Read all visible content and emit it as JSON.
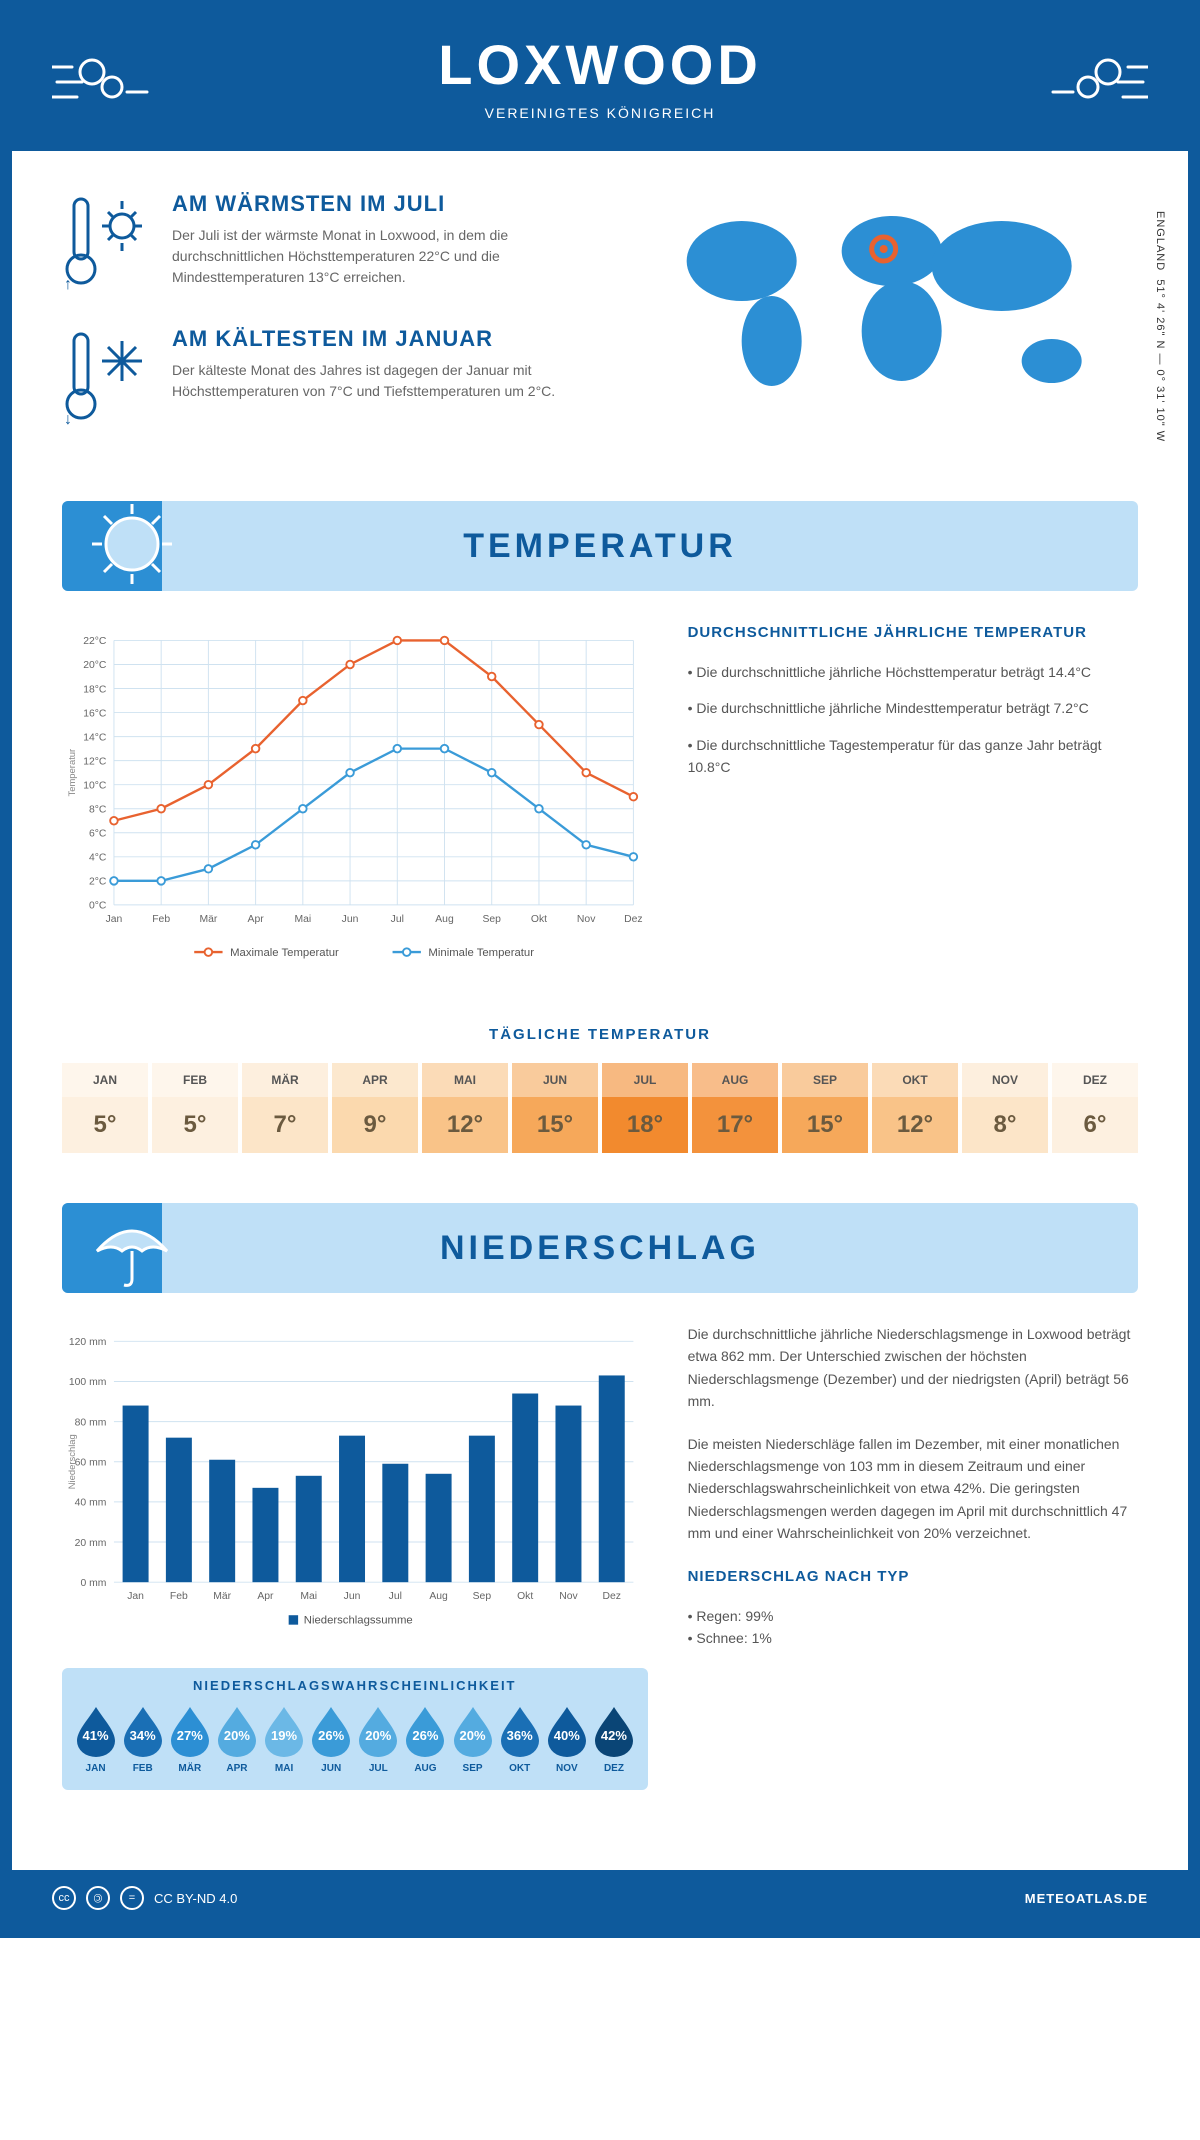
{
  "header": {
    "title": "LOXWOOD",
    "subtitle": "VEREINIGTES KÖNIGREICH"
  },
  "coords": {
    "lat": "51° 4' 26\" N — 0° 31' 10\" W",
    "region": "ENGLAND"
  },
  "facts": {
    "warm": {
      "title": "AM WÄRMSTEN IM JULI",
      "text": "Der Juli ist der wärmste Monat in Loxwood, in dem die durchschnittlichen Höchsttemperaturen 22°C und die Mindesttemperaturen 13°C erreichen."
    },
    "cold": {
      "title": "AM KÄLTESTEN IM JANUAR",
      "text": "Der kälteste Monat des Jahres ist dagegen der Januar mit Höchsttemperaturen von 7°C und Tiefsttemperaturen um 2°C."
    }
  },
  "sections": {
    "temp": "TEMPERATUR",
    "precip": "NIEDERSCHLAG",
    "daily": "TÄGLICHE TEMPERATUR",
    "prob": "NIEDERSCHLAGSWAHRSCHEINLICHKEIT"
  },
  "months": [
    "Jan",
    "Feb",
    "Mär",
    "Apr",
    "Mai",
    "Jun",
    "Jul",
    "Aug",
    "Sep",
    "Okt",
    "Nov",
    "Dez"
  ],
  "months_uc": [
    "JAN",
    "FEB",
    "MÄR",
    "APR",
    "MAI",
    "JUN",
    "JUL",
    "AUG",
    "SEP",
    "OKT",
    "NOV",
    "DEZ"
  ],
  "temp_chart": {
    "type": "line",
    "ylabel": "Temperatur",
    "ylim": [
      0,
      22
    ],
    "ytick_step": 2,
    "max_series": {
      "label": "Maximale Temperatur",
      "color": "#e8622f",
      "values": [
        7,
        8,
        10,
        13,
        17,
        20,
        22,
        22,
        19,
        15,
        11,
        9
      ]
    },
    "min_series": {
      "label": "Minimale Temperatur",
      "color": "#3a9bd8",
      "values": [
        2,
        2,
        3,
        5,
        8,
        11,
        13,
        13,
        11,
        8,
        5,
        4
      ]
    },
    "grid_color": "#cfe2f0",
    "bg": "#ffffff"
  },
  "temp_side": {
    "heading": "DURCHSCHNITTLICHE JÄHRLICHE TEMPERATUR",
    "b1": "• Die durchschnittliche jährliche Höchsttemperatur beträgt 14.4°C",
    "b2": "• Die durchschnittliche jährliche Mindesttemperatur beträgt 7.2°C",
    "b3": "• Die durchschnittliche Tagestemperatur für das ganze Jahr beträgt 10.8°C"
  },
  "daily_temp": {
    "values": [
      5,
      5,
      7,
      9,
      12,
      15,
      18,
      17,
      15,
      12,
      8,
      6
    ],
    "bg_colors": [
      "#fdf0e0",
      "#fdf0e0",
      "#fce5c8",
      "#fbd9ae",
      "#f9c388",
      "#f6a85a",
      "#f28a2e",
      "#f3923c",
      "#f6a85a",
      "#f9c388",
      "#fce5c8",
      "#fdf0e0"
    ],
    "header_bg": "rgba(255,255,255,0.4)",
    "text_color": "#6b5a3f"
  },
  "precip_chart": {
    "type": "bar",
    "ylabel": "Niederschlag",
    "ylim": [
      0,
      120
    ],
    "ytick_step": 20,
    "bar_color": "#0e5a9c",
    "values": [
      88,
      72,
      61,
      47,
      53,
      73,
      59,
      54,
      73,
      94,
      88,
      103
    ],
    "legend": "Niederschlagssumme",
    "grid_color": "#cfe2f0"
  },
  "precip_side": {
    "p1": "Die durchschnittliche jährliche Niederschlagsmenge in Loxwood beträgt etwa 862 mm. Der Unterschied zwischen der höchsten Niederschlagsmenge (Dezember) und der niedrigsten (April) beträgt 56 mm.",
    "p2": "Die meisten Niederschläge fallen im Dezember, mit einer monatlichen Niederschlagsmenge von 103 mm in diesem Zeitraum und einer Niederschlagswahrscheinlichkeit von etwa 42%. Die geringsten Niederschlagsmengen werden dagegen im April mit durchschnittlich 47 mm und einer Wahrscheinlichkeit von 20% verzeichnet.",
    "h": "NIEDERSCHLAG NACH TYP",
    "t1": "• Regen: 99%",
    "t2": "• Schnee: 1%"
  },
  "precip_prob": {
    "values": [
      41,
      34,
      27,
      20,
      19,
      26,
      20,
      26,
      20,
      36,
      40,
      42
    ],
    "colors": [
      "#0e5a9c",
      "#1a6fb5",
      "#2c8fd4",
      "#54abe0",
      "#6bb8e6",
      "#3a9bd8",
      "#54abe0",
      "#3a9bd8",
      "#54abe0",
      "#1a6fb5",
      "#0e5a9c",
      "#0a4576"
    ]
  },
  "footer": {
    "license": "CC BY-ND 4.0",
    "site": "METEOATLAS.DE"
  }
}
